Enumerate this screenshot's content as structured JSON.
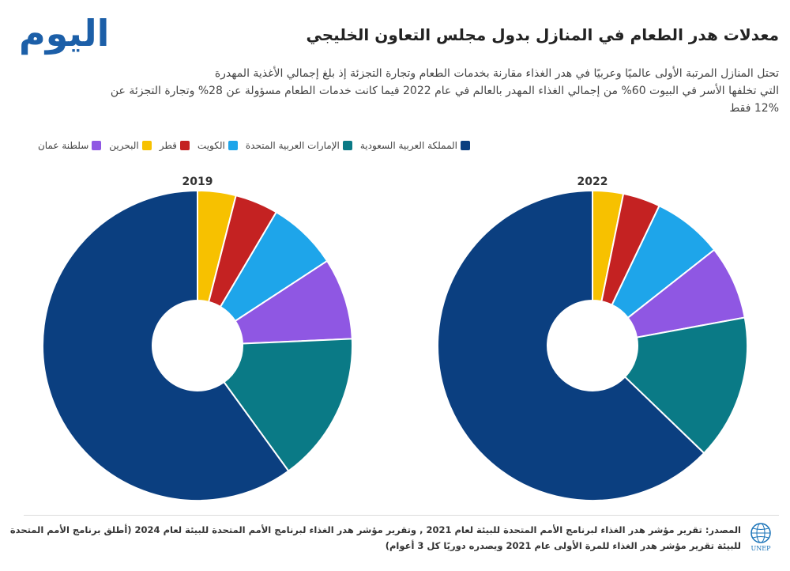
{
  "header": {
    "logo_text": "اليوم",
    "title": "معدلات هدر الطعام في المنازل بدول مجلس التعاون الخليجي",
    "subtitle_lines": [
      "تحتل المنازل المرتبة الأولى عالميًا وعربيًا في هدر الغذاء مقارنة بخدمات الطعام وتجارة التجزئة إذ بلغ إجمالي الأغذية المهدرة",
      "التي تخلفها الأسر في البيوت 60% من إجمالي الغذاء المهدر بالعالم في عام 2022 فيما كانت خدمات الطعام مسؤولة عن 28% وتجارة التجزئة عن",
      "12% فقط"
    ]
  },
  "colors": {
    "saudi": "#0b3f80",
    "uae": "#0a7a86",
    "kuwait": "#1ea5ea",
    "qatar": "#c42222",
    "bahrain": "#f7c100",
    "oman": "#8f57e3"
  },
  "legend": [
    {
      "label": "المملكة العربية السعودية",
      "color": "#0b3f80"
    },
    {
      "label": "الإمارات العربية المتحدة",
      "color": "#0a7a86"
    },
    {
      "label": "الكويت",
      "color": "#1ea5ea"
    },
    {
      "label": "قطر",
      "color": "#c42222"
    },
    {
      "label": "البحرين",
      "color": "#f7c100"
    },
    {
      "label": "سلطنة عمان",
      "color": "#8f57e3"
    }
  ],
  "chart_data": [
    {
      "type": "pie",
      "title": "2019",
      "categories": [
        "البحرين",
        "قطر",
        "الكويت",
        "سلطنة عمان",
        "الإمارات العربية المتحدة",
        "المملكة العربية السعودية"
      ],
      "values": [
        4.0,
        4.5,
        7.3,
        8.5,
        15.7,
        60.0
      ],
      "colors": [
        "#f7c100",
        "#c42222",
        "#1ea5ea",
        "#8f57e3",
        "#0a7a86",
        "#0b3f80"
      ]
    },
    {
      "type": "pie",
      "title": "2022",
      "categories": [
        "البحرين",
        "قطر",
        "الكويت",
        "سلطنة عمان",
        "الإمارات العربية المتحدة",
        "المملكة العربية السعودية"
      ],
      "values": [
        3.2,
        3.9,
        7.3,
        7.7,
        15.1,
        62.8
      ],
      "colors": [
        "#f7c100",
        "#c42222",
        "#1ea5ea",
        "#8f57e3",
        "#0a7a86",
        "#0b3f80"
      ]
    }
  ],
  "footer": {
    "source_lines": [
      "المصدر: تقرير مؤشر هدر الغذاء لبرنامج الأمم المتحدة للبيئة لعام 2021 , وتقرير مؤشر هدر الغذاء لبرنامج الأمم المتحدة للبيئة لعام 2024 (أطلق برنامج الأمم المتحدة",
      "للبيئة تقرير مؤشر هدر الغذاء للمرة الأولى عام 2021 ويصدره دوريًا كل 3 أعوام)"
    ],
    "unep_text": "UNEP"
  }
}
